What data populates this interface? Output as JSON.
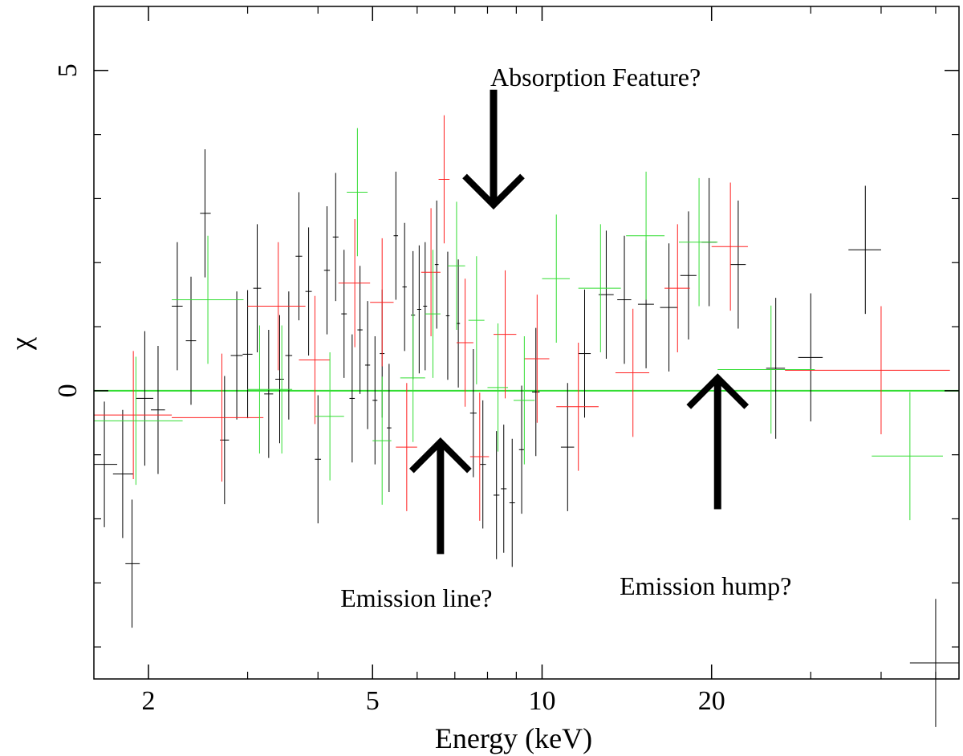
{
  "chart_data": {
    "type": "scatter",
    "title": "",
    "xlabel": "Energy (keV)",
    "ylabel": "χ",
    "x_scale": "log",
    "xlim": [
      1.6,
      55
    ],
    "ylim": [
      -4.5,
      6
    ],
    "x_ticks": [
      {
        "value": 2,
        "label": "2"
      },
      {
        "value": 5,
        "label": "5"
      },
      {
        "value": 10,
        "label": "10"
      },
      {
        "value": 20,
        "label": "20"
      }
    ],
    "y_ticks": [
      {
        "value": 0,
        "label": "0"
      },
      {
        "value": 5,
        "label": "5"
      }
    ],
    "y_minor_ticks": [
      -4,
      -3,
      -2,
      -1,
      1,
      2,
      3,
      4
    ],
    "x_minor_ticks": [
      3,
      4,
      6,
      7,
      8,
      9,
      30,
      40,
      50
    ],
    "reference_line": {
      "y": 0,
      "color": "#33dd33"
    },
    "series": [
      {
        "name": "black",
        "color": "#000000",
        "points": [
          {
            "x": 1.67,
            "y": -1.15,
            "xlo": 1.6,
            "xhi": 1.76,
            "err": 0.98
          },
          {
            "x": 1.8,
            "y": -1.3,
            "xlo": 1.73,
            "xhi": 1.88,
            "err": 1.0
          },
          {
            "x": 1.87,
            "y": -2.7,
            "xlo": 1.82,
            "xhi": 1.93,
            "err": 1.0
          },
          {
            "x": 1.97,
            "y": -0.12,
            "xlo": 1.9,
            "xhi": 2.04,
            "err": 1.05
          },
          {
            "x": 2.08,
            "y": -0.3,
            "xlo": 2.02,
            "xhi": 2.14,
            "err": 1.0
          },
          {
            "x": 2.25,
            "y": 1.32,
            "xlo": 2.2,
            "xhi": 2.3,
            "err": 1.0
          },
          {
            "x": 2.38,
            "y": 0.78,
            "xlo": 2.33,
            "xhi": 2.43,
            "err": 1.0
          },
          {
            "x": 2.52,
            "y": 2.77,
            "xlo": 2.47,
            "xhi": 2.58,
            "err": 1.0
          },
          {
            "x": 2.73,
            "y": -0.77,
            "xlo": 2.68,
            "xhi": 2.78,
            "err": 1.0
          },
          {
            "x": 2.87,
            "y": 0.55,
            "xlo": 2.8,
            "xhi": 2.94,
            "err": 1.0
          },
          {
            "x": 3.0,
            "y": 0.57,
            "xlo": 2.94,
            "xhi": 3.06,
            "err": 1.0
          },
          {
            "x": 3.12,
            "y": 1.6,
            "xlo": 3.07,
            "xhi": 3.17,
            "err": 1.0
          },
          {
            "x": 3.27,
            "y": -0.05,
            "xlo": 3.21,
            "xhi": 3.33,
            "err": 1.0
          },
          {
            "x": 3.42,
            "y": 0.18,
            "xlo": 3.36,
            "xhi": 3.48,
            "err": 1.0
          },
          {
            "x": 3.55,
            "y": 0.55,
            "xlo": 3.5,
            "xhi": 3.6,
            "err": 1.0
          },
          {
            "x": 3.7,
            "y": 2.1,
            "xlo": 3.65,
            "xhi": 3.75,
            "err": 1.0
          },
          {
            "x": 3.85,
            "y": 1.55,
            "xlo": 3.8,
            "xhi": 3.9,
            "err": 1.0
          },
          {
            "x": 4.0,
            "y": -1.07,
            "xlo": 3.95,
            "xhi": 4.05,
            "err": 1.0
          },
          {
            "x": 4.15,
            "y": 1.88,
            "xlo": 4.1,
            "xhi": 4.2,
            "err": 1.0
          },
          {
            "x": 4.3,
            "y": 2.4,
            "xlo": 4.25,
            "xhi": 4.35,
            "err": 1.0
          },
          {
            "x": 4.45,
            "y": 1.2,
            "xlo": 4.4,
            "xhi": 4.5,
            "err": 1.0
          },
          {
            "x": 4.6,
            "y": -0.12,
            "xlo": 4.55,
            "xhi": 4.65,
            "err": 1.0
          },
          {
            "x": 4.75,
            "y": 0.95,
            "xlo": 4.7,
            "xhi": 4.8,
            "err": 1.0
          },
          {
            "x": 4.9,
            "y": 0.4,
            "xlo": 4.85,
            "xhi": 4.95,
            "err": 1.0
          },
          {
            "x": 5.05,
            "y": -0.15,
            "xlo": 5.0,
            "xhi": 5.1,
            "err": 1.0
          },
          {
            "x": 5.2,
            "y": 0.58,
            "xlo": 5.15,
            "xhi": 5.25,
            "err": 1.0
          },
          {
            "x": 5.35,
            "y": -0.58,
            "xlo": 5.3,
            "xhi": 5.4,
            "err": 1.0
          },
          {
            "x": 5.5,
            "y": 2.42,
            "xlo": 5.45,
            "xhi": 5.55,
            "err": 1.0
          },
          {
            "x": 5.7,
            "y": 1.62,
            "xlo": 5.65,
            "xhi": 5.75,
            "err": 1.0
          },
          {
            "x": 5.9,
            "y": 1.18,
            "xlo": 5.85,
            "xhi": 5.95,
            "err": 1.0
          },
          {
            "x": 6.05,
            "y": 1.27,
            "xlo": 6.0,
            "xhi": 6.1,
            "err": 1.0
          },
          {
            "x": 6.2,
            "y": 1.32,
            "xlo": 6.15,
            "xhi": 6.25,
            "err": 1.0
          },
          {
            "x": 6.5,
            "y": 1.97,
            "xlo": 6.45,
            "xhi": 6.55,
            "err": 1.0
          },
          {
            "x": 6.8,
            "y": 1.17,
            "xlo": 6.75,
            "xhi": 6.85,
            "err": 1.0
          },
          {
            "x": 7.1,
            "y": 1.05,
            "xlo": 7.05,
            "xhi": 7.15,
            "err": 1.0
          },
          {
            "x": 7.55,
            "y": -0.35,
            "xlo": 7.45,
            "xhi": 7.65,
            "err": 1.0
          },
          {
            "x": 7.85,
            "y": -1.15,
            "xlo": 7.75,
            "xhi": 7.95,
            "err": 1.0
          },
          {
            "x": 8.3,
            "y": -1.63,
            "xlo": 8.2,
            "xhi": 8.4,
            "err": 1.0
          },
          {
            "x": 8.55,
            "y": -1.53,
            "xlo": 8.45,
            "xhi": 8.65,
            "err": 1.0
          },
          {
            "x": 8.85,
            "y": -1.75,
            "xlo": 8.75,
            "xhi": 8.95,
            "err": 1.0
          },
          {
            "x": 9.2,
            "y": -0.92,
            "xlo": 9.1,
            "xhi": 9.3,
            "err": 1.0
          },
          {
            "x": 9.75,
            "y": -0.02,
            "xlo": 9.6,
            "xhi": 9.9,
            "err": 1.0
          },
          {
            "x": 11.1,
            "y": -0.88,
            "xlo": 10.8,
            "xhi": 11.4,
            "err": 1.0
          },
          {
            "x": 11.9,
            "y": 0.58,
            "xlo": 11.6,
            "xhi": 12.2,
            "err": 1.0
          },
          {
            "x": 13.0,
            "y": 1.5,
            "xlo": 12.6,
            "xhi": 13.4,
            "err": 1.0
          },
          {
            "x": 14.0,
            "y": 1.42,
            "xlo": 13.6,
            "xhi": 14.4,
            "err": 1.0
          },
          {
            "x": 15.3,
            "y": 1.35,
            "xlo": 14.8,
            "xhi": 15.8,
            "err": 1.0
          },
          {
            "x": 16.8,
            "y": 1.3,
            "xlo": 16.2,
            "xhi": 17.4,
            "err": 1.0
          },
          {
            "x": 18.2,
            "y": 1.8,
            "xlo": 17.6,
            "xhi": 18.8,
            "err": 1.0
          },
          {
            "x": 19.8,
            "y": 2.32,
            "xlo": 19.2,
            "xhi": 20.4,
            "err": 1.0
          },
          {
            "x": 22.3,
            "y": 1.97,
            "xlo": 21.6,
            "xhi": 23.0,
            "err": 1.0
          },
          {
            "x": 26.0,
            "y": 0.35,
            "xlo": 25.0,
            "xhi": 27.0,
            "err": 1.1
          },
          {
            "x": 30.0,
            "y": 0.52,
            "xlo": 28.5,
            "xhi": 31.5,
            "err": 1.0
          },
          {
            "x": 37.5,
            "y": 2.2,
            "xlo": 35.0,
            "xhi": 40.0,
            "err": 1.0
          },
          {
            "x": 50.0,
            "y": -4.25,
            "xlo": 45.0,
            "xhi": 55.0,
            "err": 1.0
          }
        ]
      },
      {
        "name": "red",
        "color": "#ff2020",
        "points": [
          {
            "x": 1.88,
            "y": -0.38,
            "xlo": 1.6,
            "xhi": 2.2,
            "err": 1.0
          },
          {
            "x": 2.7,
            "y": -0.42,
            "xlo": 2.2,
            "xhi": 3.2,
            "err": 1.0
          },
          {
            "x": 3.4,
            "y": 1.32,
            "xlo": 3.0,
            "xhi": 3.8,
            "err": 1.0
          },
          {
            "x": 3.95,
            "y": 0.48,
            "xlo": 3.7,
            "xhi": 4.2,
            "err": 1.0
          },
          {
            "x": 4.65,
            "y": 1.68,
            "xlo": 4.35,
            "xhi": 4.95,
            "err": 1.0
          },
          {
            "x": 5.2,
            "y": 1.38,
            "xlo": 4.95,
            "xhi": 5.45,
            "err": 1.0
          },
          {
            "x": 5.75,
            "y": -0.88,
            "xlo": 5.5,
            "xhi": 6.0,
            "err": 1.0
          },
          {
            "x": 6.35,
            "y": 1.85,
            "xlo": 6.1,
            "xhi": 6.6,
            "err": 1.0
          },
          {
            "x": 6.7,
            "y": 3.3,
            "xlo": 6.55,
            "xhi": 6.85,
            "err": 1.0
          },
          {
            "x": 7.3,
            "y": 0.75,
            "xlo": 7.05,
            "xhi": 7.55,
            "err": 1.0
          },
          {
            "x": 7.75,
            "y": -1.03,
            "xlo": 7.45,
            "xhi": 8.05,
            "err": 1.0
          },
          {
            "x": 8.6,
            "y": 0.88,
            "xlo": 8.2,
            "xhi": 9.0,
            "err": 1.0
          },
          {
            "x": 9.8,
            "y": 0.5,
            "xlo": 9.3,
            "xhi": 10.3,
            "err": 1.0
          },
          {
            "x": 11.6,
            "y": -0.25,
            "xlo": 10.6,
            "xhi": 12.6,
            "err": 1.0
          },
          {
            "x": 14.5,
            "y": 0.28,
            "xlo": 13.5,
            "xhi": 15.5,
            "err": 1.0
          },
          {
            "x": 17.4,
            "y": 1.6,
            "xlo": 16.5,
            "xhi": 18.3,
            "err": 1.0
          },
          {
            "x": 21.6,
            "y": 2.25,
            "xlo": 20.0,
            "xhi": 23.2,
            "err": 1.0
          },
          {
            "x": 40.0,
            "y": 0.32,
            "xlo": 27.0,
            "xhi": 53.0,
            "err": 1.0
          }
        ]
      },
      {
        "name": "green",
        "color": "#33dd33",
        "points": [
          {
            "x": 1.9,
            "y": -0.47,
            "xlo": 1.6,
            "xhi": 2.3,
            "err": 1.0
          },
          {
            "x": 2.55,
            "y": 1.42,
            "xlo": 2.2,
            "xhi": 2.95,
            "err": 1.0
          },
          {
            "x": 3.15,
            "y": 0.02,
            "xlo": 3.0,
            "xhi": 3.3,
            "err": 1.0
          },
          {
            "x": 3.45,
            "y": 0.02,
            "xlo": 3.3,
            "xhi": 3.6,
            "err": 1.0
          },
          {
            "x": 4.2,
            "y": -0.4,
            "xlo": 3.95,
            "xhi": 4.45,
            "err": 1.0
          },
          {
            "x": 4.7,
            "y": 3.1,
            "xlo": 4.5,
            "xhi": 4.9,
            "err": 1.0
          },
          {
            "x": 5.2,
            "y": -0.78,
            "xlo": 5.0,
            "xhi": 5.4,
            "err": 1.0
          },
          {
            "x": 5.9,
            "y": 0.2,
            "xlo": 5.6,
            "xhi": 6.2,
            "err": 1.0
          },
          {
            "x": 6.4,
            "y": 1.2,
            "xlo": 6.2,
            "xhi": 6.6,
            "err": 1.0
          },
          {
            "x": 7.05,
            "y": 1.95,
            "xlo": 6.8,
            "xhi": 7.3,
            "err": 1.0
          },
          {
            "x": 7.65,
            "y": 1.1,
            "xlo": 7.4,
            "xhi": 7.9,
            "err": 1.0
          },
          {
            "x": 8.35,
            "y": 0.05,
            "xlo": 8.0,
            "xhi": 8.7,
            "err": 1.0
          },
          {
            "x": 9.3,
            "y": -0.15,
            "xlo": 8.9,
            "xhi": 9.7,
            "err": 1.0
          },
          {
            "x": 10.6,
            "y": 1.75,
            "xlo": 10.0,
            "xhi": 11.2,
            "err": 1.0
          },
          {
            "x": 12.7,
            "y": 1.6,
            "xlo": 11.6,
            "xhi": 13.8,
            "err": 1.0
          },
          {
            "x": 15.3,
            "y": 2.42,
            "xlo": 14.1,
            "xhi": 16.5,
            "err": 1.0
          },
          {
            "x": 19.0,
            "y": 2.32,
            "xlo": 17.5,
            "xhi": 20.5,
            "err": 1.0
          },
          {
            "x": 25.5,
            "y": 0.33,
            "xlo": 20.5,
            "xhi": 30.5,
            "err": 1.0
          },
          {
            "x": 45.0,
            "y": -1.02,
            "xlo": 38.5,
            "xhi": 51.5,
            "err": 1.0
          }
        ]
      }
    ],
    "annotations": [
      {
        "text": "Absorption Feature?",
        "arrow": "down",
        "x": 8.2,
        "y_top": 4.7,
        "y_tip": 2.9
      },
      {
        "text": "Emission line?",
        "arrow": "up",
        "x": 6.6,
        "y_top": -0.8,
        "y_tip": -2.55
      },
      {
        "text": "Emission hump?",
        "arrow": "up",
        "x": 20.5,
        "y_top": 0.2,
        "y_tip": -1.85
      }
    ]
  }
}
